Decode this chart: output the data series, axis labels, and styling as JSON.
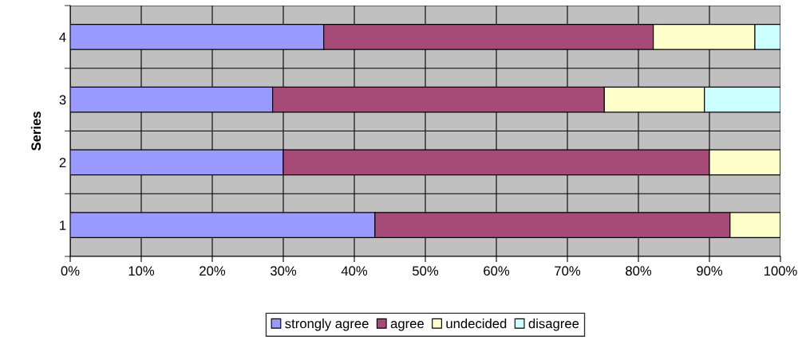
{
  "chart_data": {
    "type": "bar",
    "orientation": "horizontal",
    "stacked": true,
    "ylabel": "Series",
    "categories": [
      "4",
      "3",
      "2",
      "1"
    ],
    "series": [
      {
        "name": "strongly agree",
        "color": "#9999ff",
        "values": [
          35.7,
          28.5,
          30,
          42.9
        ]
      },
      {
        "name": "agree",
        "color": "#a64a78",
        "values": [
          46.4,
          46.7,
          60,
          50
        ]
      },
      {
        "name": "undecided",
        "color": "#ffffcc",
        "values": [
          14.3,
          14.1,
          10,
          7.1
        ]
      },
      {
        "name": "disagree",
        "color": "#ccffff",
        "values": [
          3.6,
          10.7,
          0,
          0
        ]
      }
    ],
    "xlim": [
      0,
      100
    ],
    "xticks": [
      {
        "value": 0,
        "label": "0%"
      },
      {
        "value": 10,
        "label": "10%"
      },
      {
        "value": 20,
        "label": "20%"
      },
      {
        "value": 30,
        "label": "30%"
      },
      {
        "value": 40,
        "label": "40%"
      },
      {
        "value": 50,
        "label": "50%"
      },
      {
        "value": 60,
        "label": "60%"
      },
      {
        "value": 70,
        "label": "70%"
      },
      {
        "value": 80,
        "label": "80%"
      },
      {
        "value": 90,
        "label": "90%"
      },
      {
        "value": 100,
        "label": "100%"
      }
    ],
    "grid": true,
    "legend": "bottom"
  }
}
